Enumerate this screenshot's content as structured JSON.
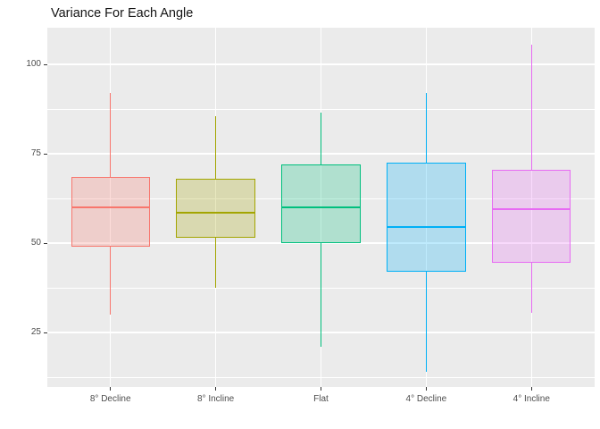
{
  "chart_data": {
    "type": "boxplot",
    "title": "Variance For Each Angle",
    "xlabel": "",
    "ylabel": "",
    "categories": [
      "8° Decline",
      "8° Incline",
      "Flat",
      "4° Decline",
      "4° Incline"
    ],
    "yticks": [
      25,
      50,
      75,
      100
    ],
    "ylim": [
      9.75,
      110.25
    ],
    "grid": true,
    "legend": false,
    "series": [
      {
        "label": "8° Decline",
        "min": 30,
        "q1": 49,
        "median": 60,
        "q3": 68.5,
        "max": 92,
        "color": "#F8766D",
        "fill": "rgba(248,118,109,0.25)"
      },
      {
        "label": "8° Incline",
        "min": 37.5,
        "q1": 51.5,
        "median": 58.5,
        "q3": 68,
        "max": 85.5,
        "color": "#A3A500",
        "fill": "rgba(163,165,0,0.25)"
      },
      {
        "label": "Flat",
        "min": 21,
        "q1": 50,
        "median": 60,
        "q3": 72,
        "max": 86.5,
        "color": "#00BF7D",
        "fill": "rgba(0,191,125,0.25)"
      },
      {
        "label": "4° Decline",
        "min": 14,
        "q1": 42,
        "median": 54.5,
        "q3": 72.5,
        "max": 92,
        "color": "#00B0F6",
        "fill": "rgba(0,176,246,0.25)"
      },
      {
        "label": "4° Incline",
        "min": 30.5,
        "q1": 44.5,
        "median": 59.5,
        "q3": 70.5,
        "max": 105.5,
        "color": "#E76BF3",
        "fill": "rgba(231,107,243,0.25)"
      }
    ],
    "style": {
      "panel_background": "#EBEBEB",
      "gridline_color": "#FFFFFF",
      "tick_label_color": "#4D4D4D",
      "tick_mark_color": "#333333",
      "title_color": "#141414",
      "outer_background": "#FFFFFF",
      "box_width_fraction": 0.75
    }
  }
}
